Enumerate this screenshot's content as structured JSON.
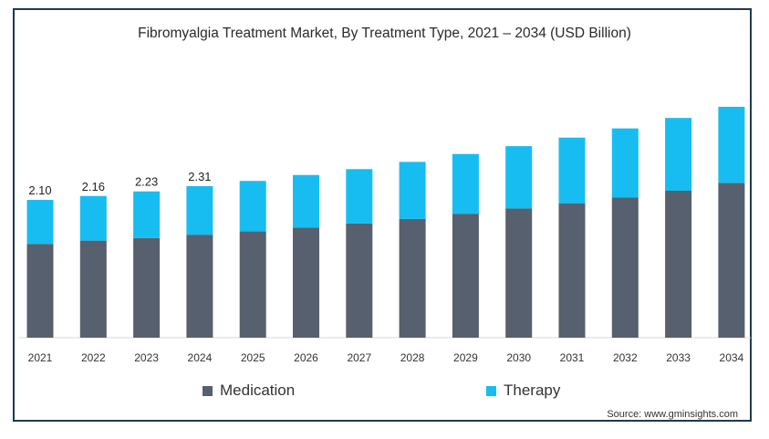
{
  "chart_data": {
    "type": "bar",
    "stacked": true,
    "title": "Fibromyalgia Treatment Market, By Treatment Type, 2021 – 2034 (USD Billion)",
    "categories": [
      "2021",
      "2022",
      "2023",
      "2024",
      "2025",
      "2026",
      "2027",
      "2028",
      "2029",
      "2030",
      "2031",
      "2032",
      "2033",
      "2034"
    ],
    "series": [
      {
        "name": "Medication",
        "color": "#56606e",
        "values": [
          1.43,
          1.48,
          1.52,
          1.57,
          1.62,
          1.68,
          1.74,
          1.81,
          1.89,
          1.97,
          2.05,
          2.14,
          2.24,
          2.36
        ]
      },
      {
        "name": "Therapy",
        "color": "#17bdf0",
        "values": [
          0.67,
          0.68,
          0.71,
          0.74,
          0.77,
          0.8,
          0.83,
          0.87,
          0.91,
          0.95,
          1.0,
          1.05,
          1.11,
          1.16
        ]
      }
    ],
    "totals": [
      2.1,
      2.16,
      2.23,
      2.31,
      2.39,
      2.48,
      2.57,
      2.68,
      2.8,
      2.92,
      3.05,
      3.19,
      3.35,
      3.52
    ],
    "data_labels": [
      "2.10",
      "2.16",
      "2.23",
      "2.31",
      null,
      null,
      null,
      null,
      null,
      null,
      null,
      null,
      null,
      null
    ],
    "ylim": [
      0,
      3.52
    ],
    "xlabel": "",
    "ylabel": "",
    "grid": false,
    "legend_position": "bottom"
  },
  "source": "Source: www.gminsights.com"
}
